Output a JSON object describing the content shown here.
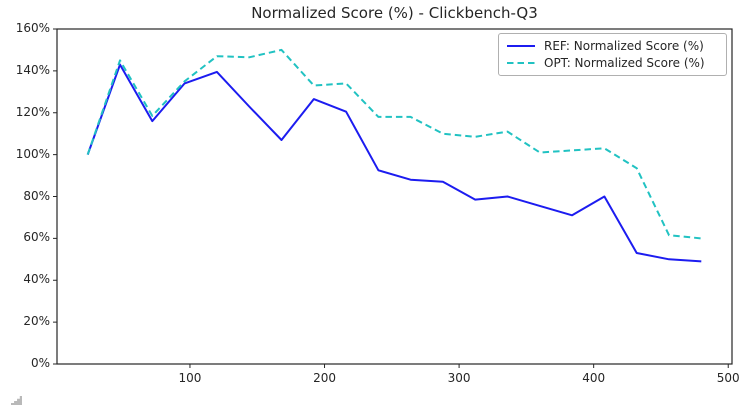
{
  "chart_data": {
    "type": "line",
    "title": "Normalized Score (%) - Clickbench-Q3",
    "x": [
      24,
      48,
      72,
      96,
      120,
      144,
      168,
      192,
      216,
      240,
      264,
      288,
      312,
      336,
      360,
      384,
      408,
      432,
      456,
      480
    ],
    "series": [
      {
        "name": "REF: Normalized Score (%)",
        "color": "#1c1cf0",
        "style": "solid",
        "values": [
          100,
          143,
          116,
          134,
          139.5,
          123,
          107,
          126.5,
          120.5,
          92.5,
          88,
          87,
          78.5,
          80,
          75.5,
          71,
          80,
          53,
          50,
          49
        ]
      },
      {
        "name": "OPT: Normalized Score (%)",
        "color": "#21c2c2",
        "style": "dashed",
        "values": [
          100,
          145,
          118.5,
          135,
          147,
          146.5,
          150,
          133,
          134,
          118,
          118,
          110,
          108.5,
          111,
          101,
          102,
          103,
          93.5,
          61.5,
          60
        ]
      }
    ],
    "xlim": [
      1.2,
      502.8
    ],
    "ylim": [
      0,
      160
    ],
    "x_ticks": [
      100,
      200,
      300,
      400,
      500
    ],
    "y_ticks": [
      0,
      20,
      40,
      60,
      80,
      100,
      120,
      140,
      160
    ],
    "y_tick_suffix": "%",
    "legend_position": "upper right",
    "grid": false,
    "axis_color": "#262626"
  }
}
